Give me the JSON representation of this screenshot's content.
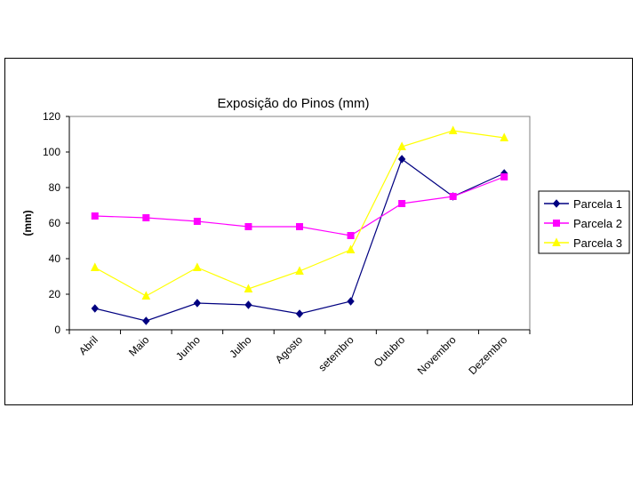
{
  "chart_data": {
    "type": "line",
    "title": "Exposição do Pinos (mm)",
    "xlabel": "",
    "ylabel": "(mm)",
    "ylim": [
      0,
      120
    ],
    "yticks": [
      0,
      20,
      40,
      60,
      80,
      100,
      120
    ],
    "grid": false,
    "legend": "right",
    "categories": [
      "Abril",
      "Maio",
      "Junho",
      "Julho",
      "Agosto",
      "setembro",
      "Outubro",
      "Novembro",
      "Dezembro"
    ],
    "series": [
      {
        "name": "Parcela 1",
        "color": "#000080",
        "marker": "diamond",
        "values": [
          12,
          5,
          15,
          14,
          9,
          16,
          96,
          75,
          88
        ]
      },
      {
        "name": "Parcela 2",
        "color": "#FF00FF",
        "marker": "square",
        "values": [
          64,
          63,
          61,
          58,
          58,
          53,
          71,
          75,
          86
        ]
      },
      {
        "name": "Parcela 3",
        "color": "#FFFF00",
        "marker": "triangle",
        "values": [
          35,
          19,
          35,
          23,
          33,
          45,
          103,
          112,
          108
        ]
      }
    ]
  }
}
